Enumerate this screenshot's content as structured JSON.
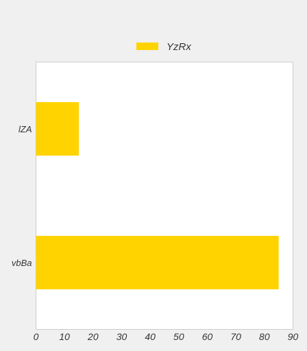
{
  "chart_data": {
    "type": "bar",
    "orientation": "horizontal",
    "categories": [
      "lZA",
      "vbBa"
    ],
    "series": [
      {
        "name": "YzRx",
        "values": [
          15,
          85
        ]
      }
    ],
    "xlim": [
      0,
      90
    ],
    "xticks": [
      "0",
      "10",
      "20",
      "30",
      "40",
      "50",
      "60",
      "70",
      "80",
      "90"
    ],
    "grid": false,
    "legend_position": "top"
  },
  "colors": {
    "bar": "#ffd300",
    "page_background": "#f0f0f0",
    "plot_background": "#ffffff",
    "plot_border": "#cccccc",
    "text": "#333333"
  }
}
